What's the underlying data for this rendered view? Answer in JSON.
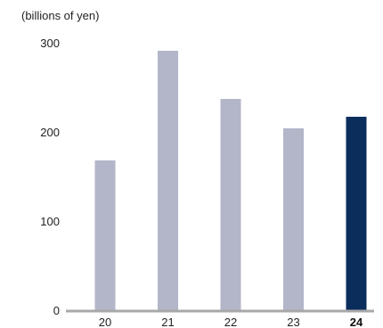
{
  "chart_data": {
    "type": "bar",
    "unit_label": "(billions of yen)",
    "categories": [
      "20",
      "21",
      "22",
      "23",
      "24"
    ],
    "values": [
      169,
      292,
      238,
      205,
      218
    ],
    "highlight_index": 4,
    "y_ticks": [
      0,
      100,
      200,
      300
    ],
    "ylim": [
      0,
      300
    ],
    "grid": false,
    "colors": {
      "bar": "#b3b5c8",
      "highlight": "#0b2d5b",
      "axis": "#a8a8a8"
    }
  }
}
